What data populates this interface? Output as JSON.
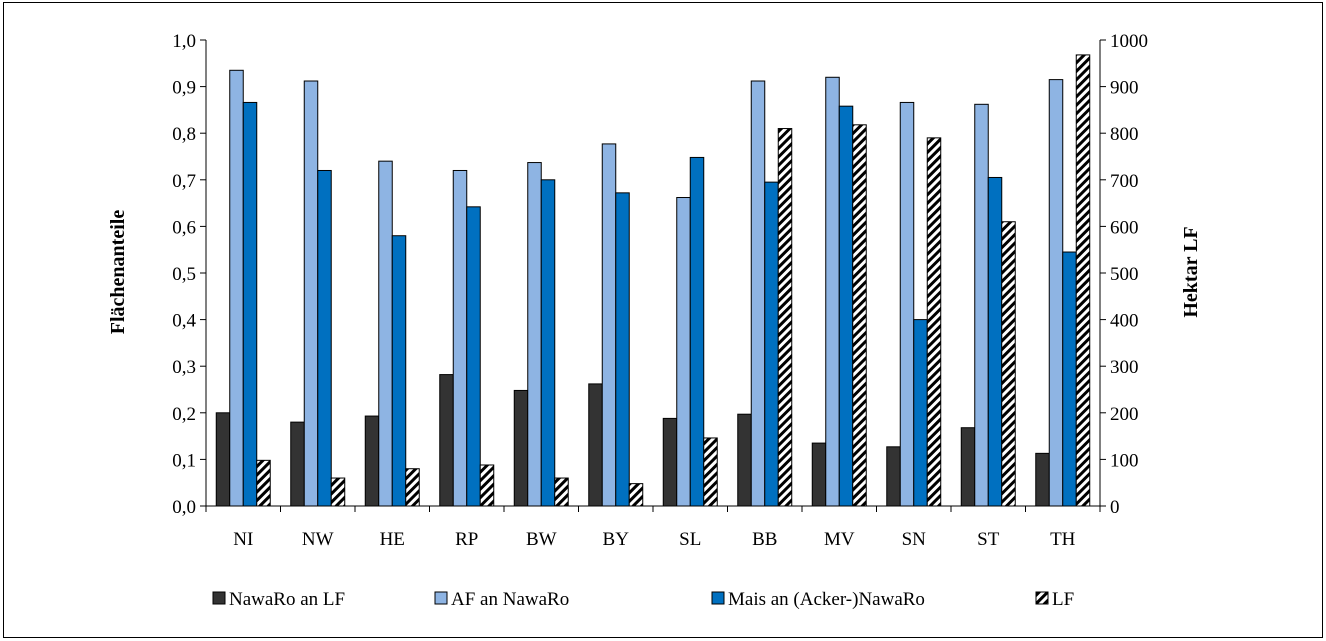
{
  "chart_data": {
    "type": "bar",
    "title": "",
    "categories": [
      "NI",
      "NW",
      "HE",
      "RP",
      "BW",
      "BY",
      "SL",
      "BB",
      "MV",
      "SN",
      "ST",
      "TH"
    ],
    "ylabel": "Flächenanteile",
    "y2label": "Hektar LF",
    "ylim": [
      0,
      1.0
    ],
    "y2lim": [
      0,
      1000
    ],
    "yticks": [
      "0,0",
      "0,1",
      "0,2",
      "0,3",
      "0,4",
      "0,5",
      "0,6",
      "0,7",
      "0,8",
      "0,9",
      "1,0"
    ],
    "y2ticks": [
      "0",
      "100",
      "200",
      "300",
      "400",
      "500",
      "600",
      "700",
      "800",
      "900",
      "1000"
    ],
    "grid": false,
    "legend_position": "bottom",
    "series": [
      {
        "name": "NawaRo an LF",
        "axis": "left",
        "color": "#333333",
        "pattern": "solid",
        "values": [
          0.2,
          0.18,
          0.193,
          0.282,
          0.248,
          0.262,
          0.188,
          0.197,
          0.135,
          0.127,
          0.168,
          0.113
        ]
      },
      {
        "name": "AF an NawaRo",
        "axis": "left",
        "color": "#8EB4E3",
        "pattern": "solid",
        "values": [
          0.935,
          0.912,
          0.74,
          0.72,
          0.737,
          0.777,
          0.662,
          0.912,
          0.92,
          0.866,
          0.862,
          0.915
        ]
      },
      {
        "name": "Mais an (Acker-)NawaRo",
        "axis": "left",
        "color": "#0070C0",
        "pattern": "solid",
        "values": [
          0.866,
          0.72,
          0.58,
          0.642,
          0.7,
          0.672,
          0.748,
          0.695,
          0.858,
          0.4,
          0.705,
          0.545
        ]
      },
      {
        "name": "LF",
        "axis": "right",
        "color": "#000000",
        "pattern": "diagonal-stripes",
        "values": [
          98,
          60,
          80,
          88,
          60,
          48,
          146,
          810,
          818,
          790,
          610,
          968
        ]
      }
    ]
  }
}
